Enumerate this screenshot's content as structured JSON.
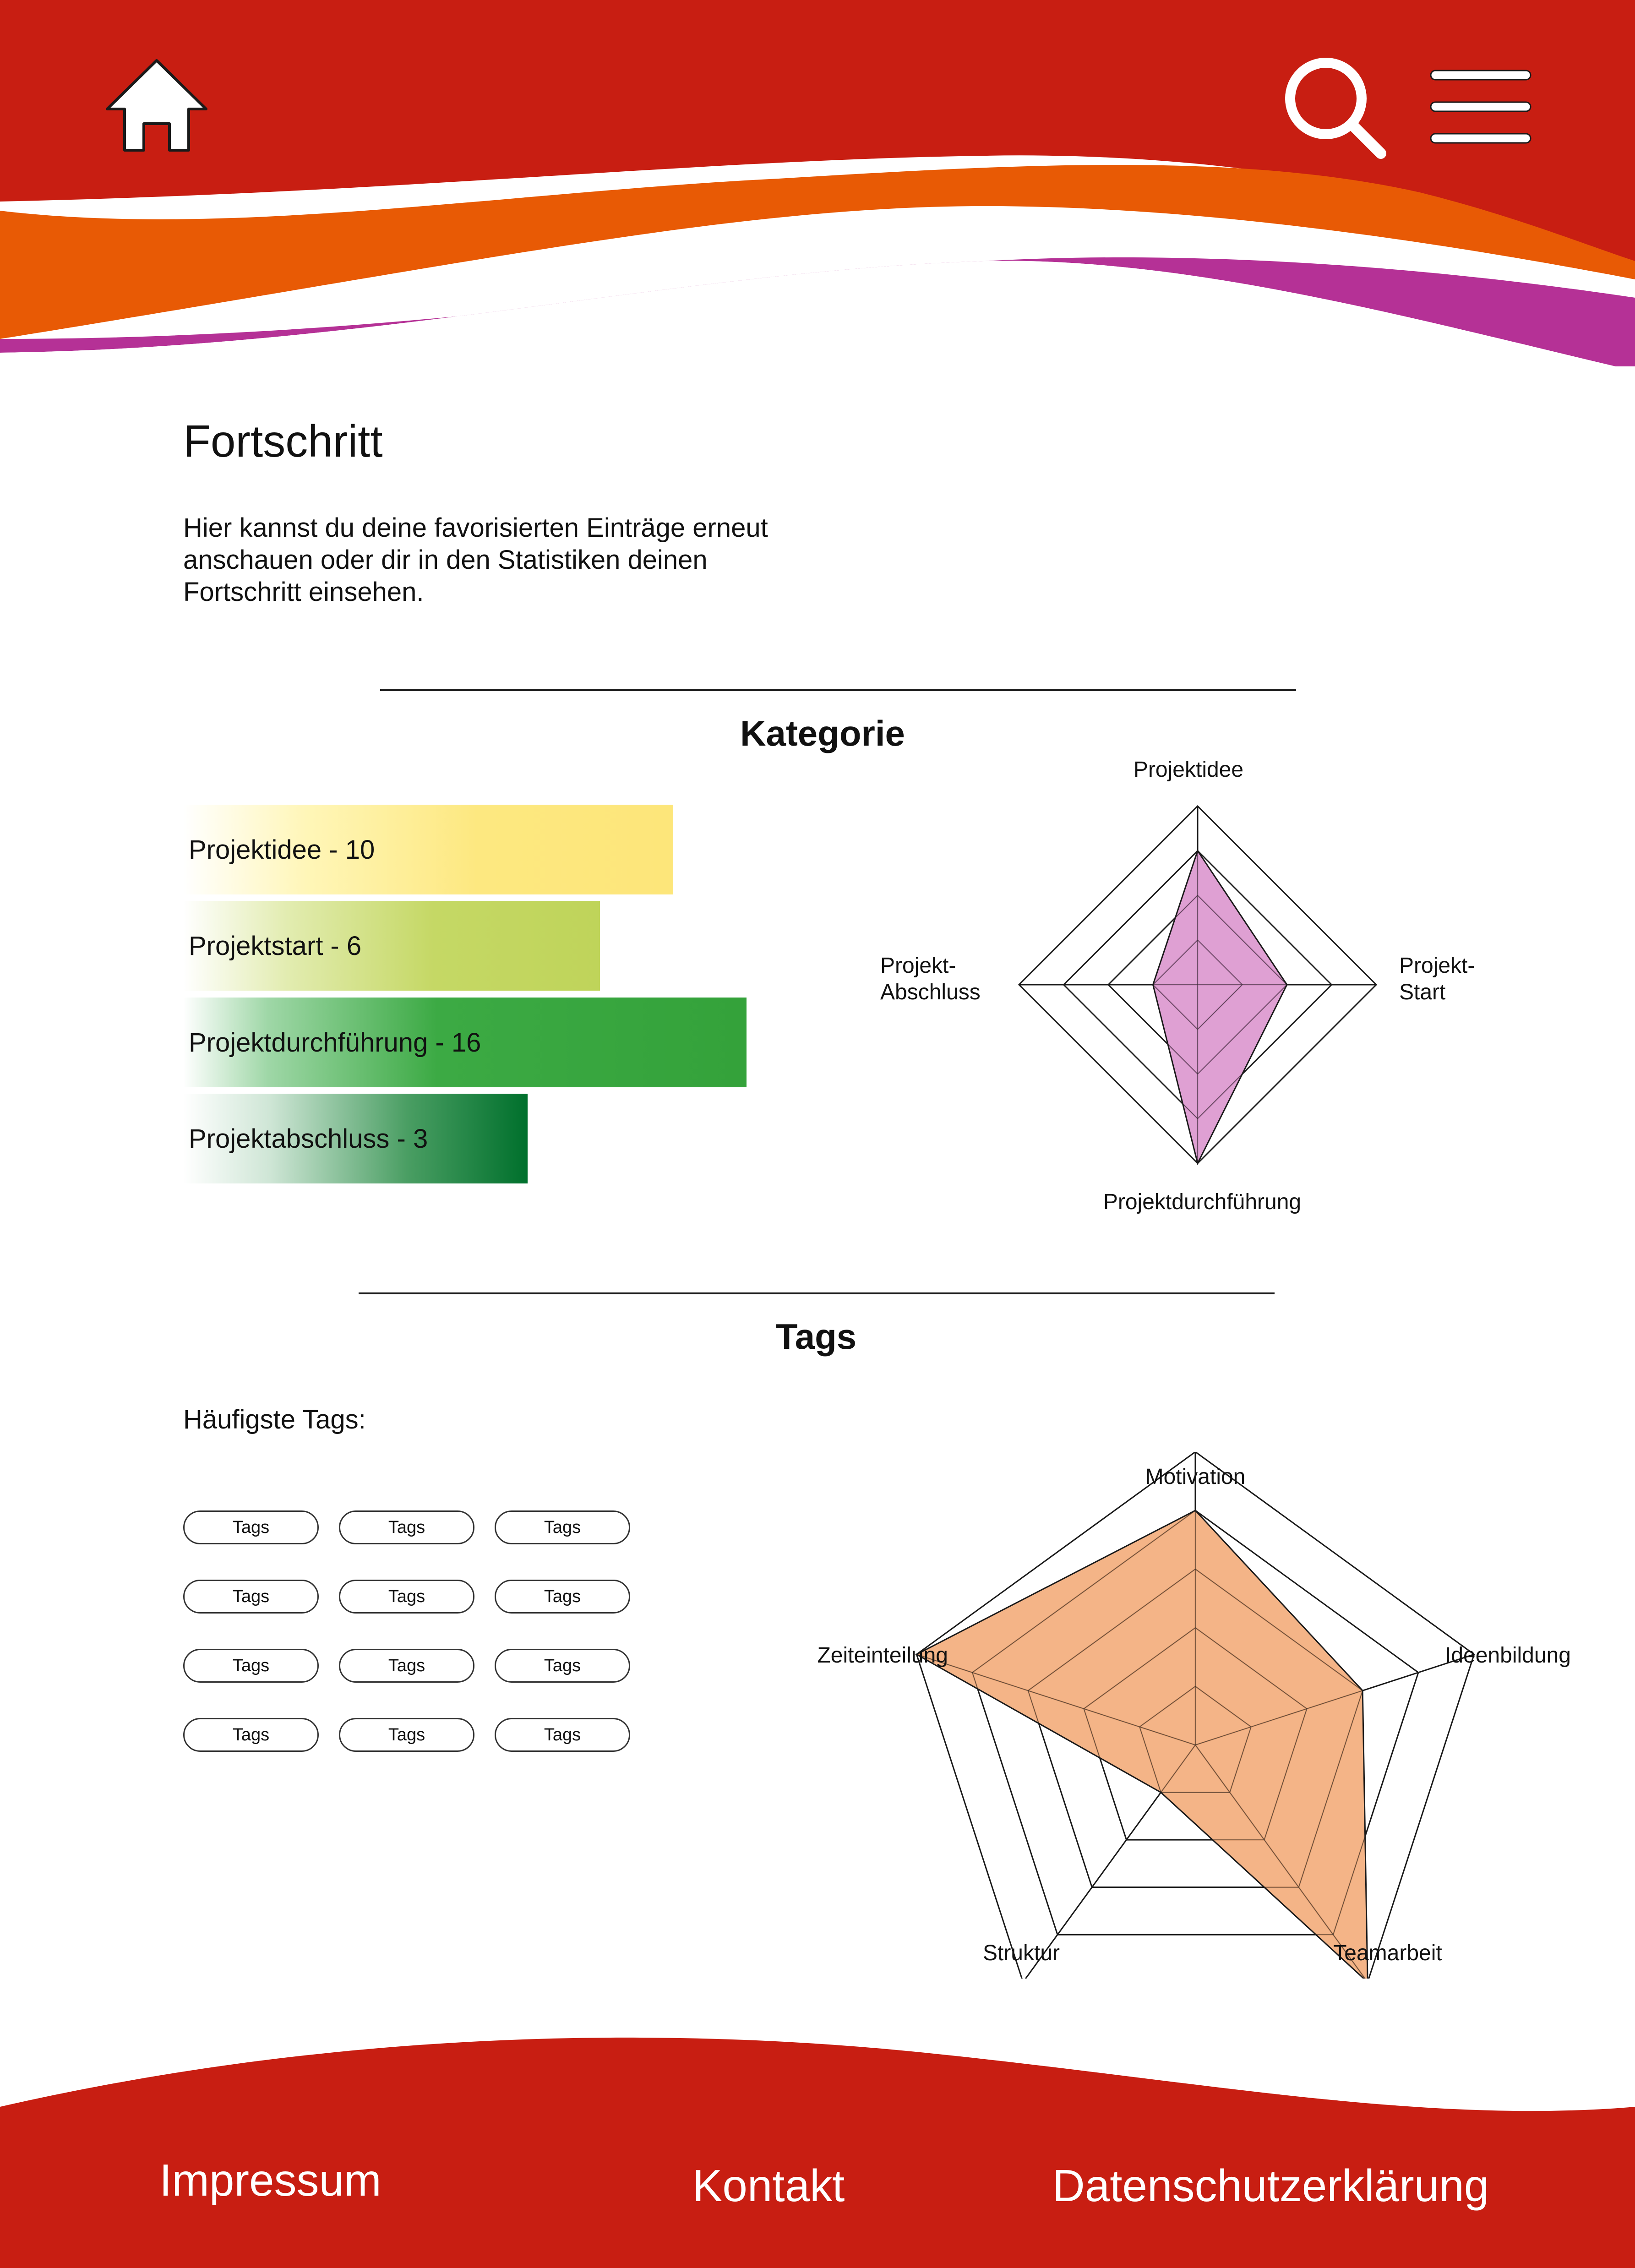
{
  "colors": {
    "header_red": "#c81e12",
    "wave_orange": "#e85a05",
    "wave_purple": "#b53196",
    "kategorie_radar_fill": "#d98fcb",
    "tags_radar_fill": "#f2a772"
  },
  "header": {
    "home_icon": "home-icon",
    "search_icon": "search-icon",
    "menu_icon": "menu-icon"
  },
  "main": {
    "title": "Fortschritt",
    "intro": "Hier kannst du deine favorisierten Einträge erneut anschauen oder dir in den Statistiken deinen Fortschritt einsehen."
  },
  "kategorie": {
    "heading": "Kategorie",
    "bars": [
      {
        "label": "Projektidee - 10"
      },
      {
        "label": "Projektstart - 6"
      },
      {
        "label": "Projektdurchführung - 16"
      },
      {
        "label": "Projektabschluss  - 3"
      }
    ]
  },
  "tags": {
    "heading": "Tags",
    "most_frequent_label": "Häufigste Tags:",
    "items": [
      "Tags",
      "Tags",
      "Tags",
      "Tags",
      "Tags",
      "Tags",
      "Tags",
      "Tags",
      "Tags",
      "Tags",
      "Tags",
      "Tags"
    ]
  },
  "chart_data": [
    {
      "type": "bar",
      "categories": [
        "Projektidee",
        "Projektstart",
        "Projektdurchführung",
        "Projektabschluss"
      ],
      "values": [
        10,
        6,
        16,
        3
      ]
    },
    {
      "type": "radar",
      "axes": [
        "Projektidee",
        "Projekt-\nStart",
        "Projektdurchführung",
        "Projekt-\nAbschluss"
      ],
      "levels": 4,
      "values": [
        3,
        2,
        4,
        1
      ],
      "max": 4
    },
    {
      "type": "radar",
      "axes": [
        "Motivation",
        "Ideenbildung",
        "Teamarbeit",
        "Struktur",
        "Zeiteinteilung"
      ],
      "levels": 5,
      "values": [
        4,
        3,
        5,
        1,
        5
      ],
      "max": 5
    }
  ],
  "footer": {
    "impressum": "Impressum",
    "kontakt": "Kontakt",
    "datenschutz": "Datenschutzerklärung"
  }
}
